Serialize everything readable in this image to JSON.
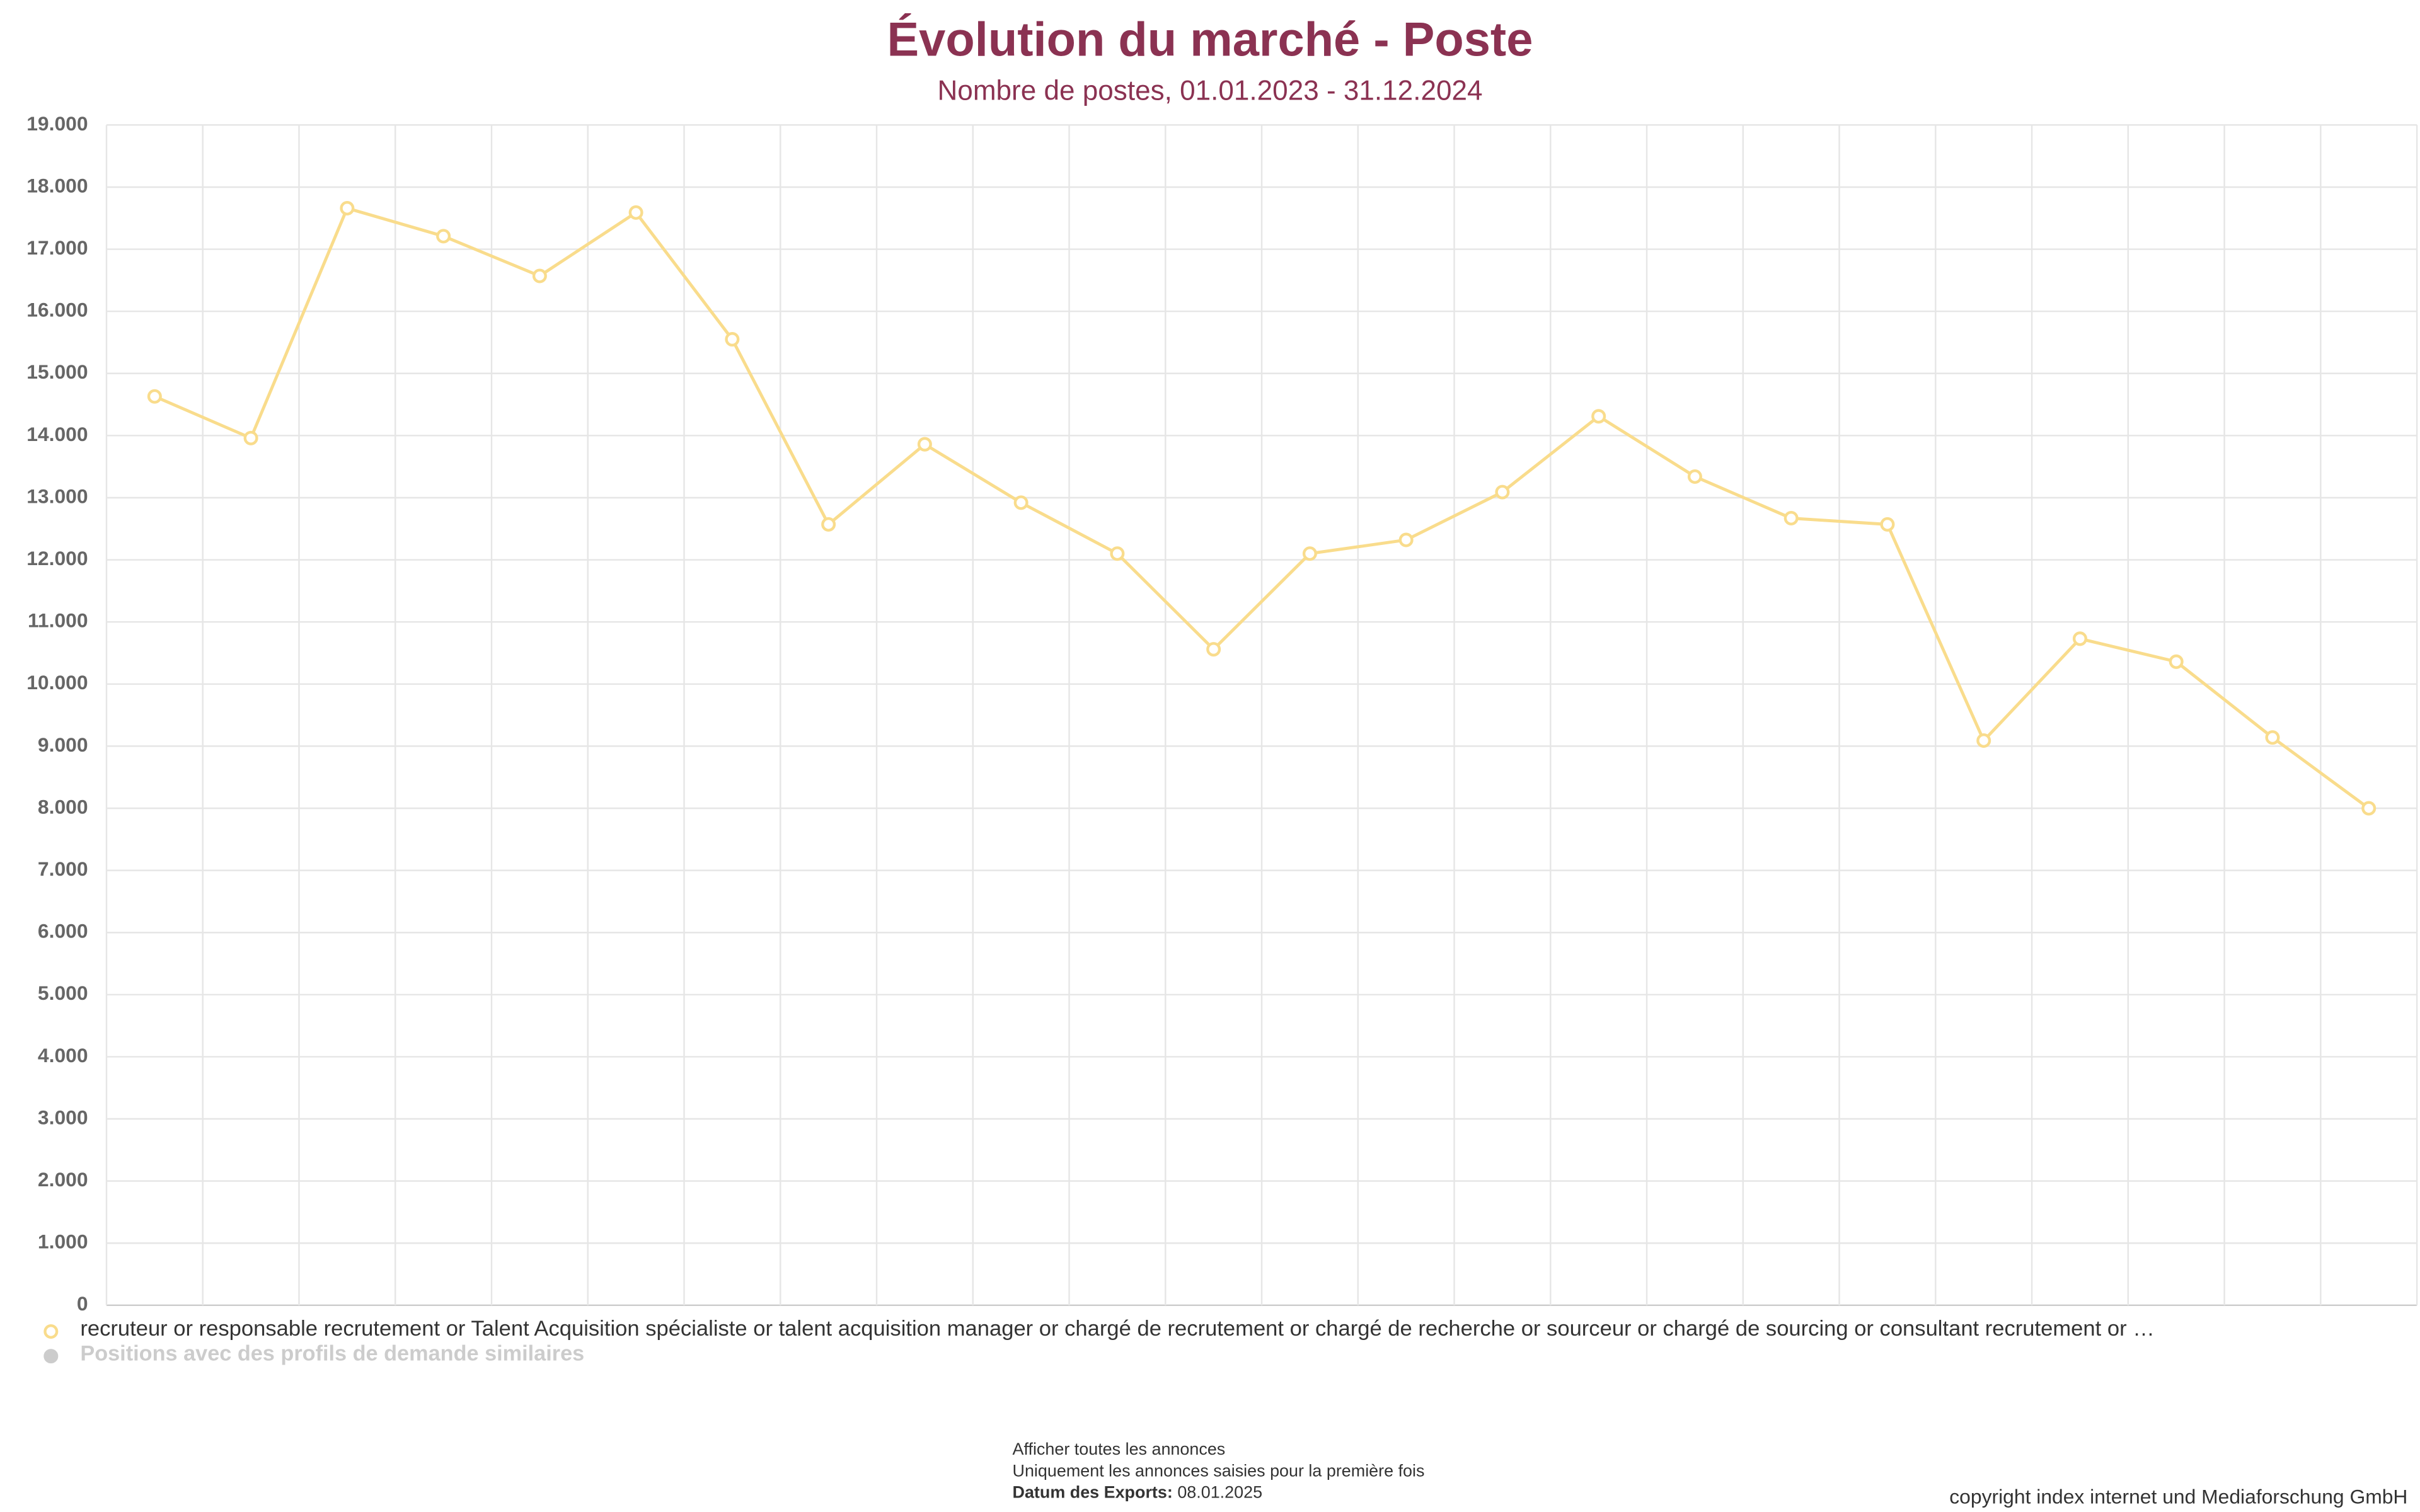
{
  "chart_data": {
    "type": "line",
    "title": "Évolution du marché - Poste",
    "subtitle": "Nombre de postes, 01.01.2023 - 31.12.2024",
    "series": [
      {
        "name": "recruteur or responsable recrutement or Talent Acquisition spécialiste or talent acquisition manager or chargé de recrutement or chargé de recherche or sourceur or chargé de sourcing or consultant recrutement or …",
        "color": "#f9dc8c",
        "values": [
          14630,
          13960,
          17660,
          17210,
          16570,
          17590,
          15550,
          12570,
          13860,
          12920,
          12100,
          10560,
          12100,
          12320,
          13090,
          14310,
          13340,
          12670,
          12570,
          9090,
          10730,
          10360,
          9140,
          8000
        ]
      },
      {
        "name": "Positions avec des profils de demande similaires",
        "color": "#cccccc",
        "visible": false
      }
    ],
    "ylim": [
      0,
      19000
    ],
    "yticks": [
      0,
      {
        "value": 1000,
        "label": "1.000"
      },
      {
        "value": 2000,
        "label": "2.000"
      },
      {
        "value": 3000,
        "label": "3.000"
      },
      {
        "value": 4000,
        "label": "4.000"
      },
      {
        "value": 5000,
        "label": "5.000"
      },
      {
        "value": 6000,
        "label": "6.000"
      },
      {
        "value": 7000,
        "label": "7.000"
      },
      {
        "value": 8000,
        "label": "8.000"
      },
      {
        "value": 9000,
        "label": "9.000"
      },
      {
        "value": 10000,
        "label": "10.000"
      },
      {
        "value": 11000,
        "label": "11.000"
      },
      {
        "value": 12000,
        "label": "12.000"
      },
      {
        "value": 13000,
        "label": "13.000"
      },
      {
        "value": 14000,
        "label": "14.000"
      },
      {
        "value": 15000,
        "label": "15.000"
      },
      {
        "value": 16000,
        "label": "16.000"
      },
      {
        "value": 17000,
        "label": "17.000"
      },
      {
        "value": 18000,
        "label": "18.000"
      },
      {
        "value": 19000,
        "label": "19.000"
      }
    ],
    "grid": true
  },
  "footer": {
    "line1": "Afficher toutes les annonces",
    "line2": "Uniquement les annonces saisies pour la première fois",
    "export_label": "Datum des Exports:",
    "export_date": "08.01.2025",
    "copyright": "copyright index internet und Mediaforschung GmbH"
  }
}
